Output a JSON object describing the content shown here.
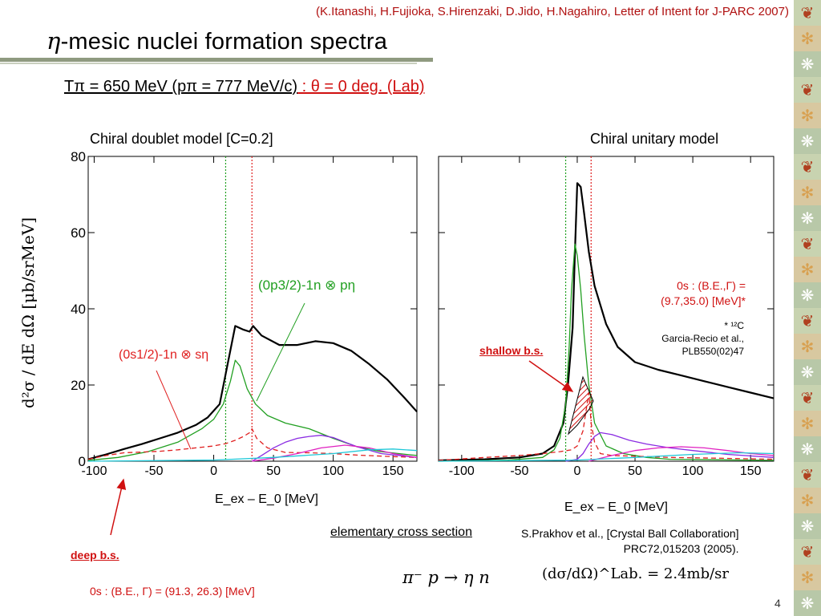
{
  "slide": {
    "reference": "(K.Itanashi, H.Fujioka, S.Hirenzaki, D.Jido, H.Nagahiro, Letter of Intent for J-PARC 2007)",
    "title_symbol": "η",
    "title_text": "-mesic nuclei formation spectra",
    "kinematics_main": "Tπ = 650 MeV  (pπ = 777 MeV/c)",
    "kinematics_angle": " : θ = 0 deg. (Lab)",
    "y_axis_label": "d²σ / dE dΩ [μb/srMeV]",
    "elementary_label": "elementary cross section",
    "elementary_ref_line1": "S.Prakhov et al., [Crystal Ball Collaboration]",
    "elementary_ref_line2": "PRC72,015203 (2005).",
    "reaction": "π⁻ p → η n",
    "formula": "(dσ/dΩ)^Lab. = 2.4mb/sr",
    "deep_bs_label": "deep b.s.",
    "deep_bs_info": "0s : (B.E., Γ) = (91.3, 26.3) [MeV]",
    "shallow_bs_label": "shallow b.s.",
    "right_info_line1": "0s : (B.E.,Γ) =",
    "right_info_line2": "(9.7,35.0) [MeV]*",
    "ref_line1": "* ¹²C",
    "ref_line2": "Garcia-Recio et al.,",
    "ref_line3": "PLB550(02)47",
    "page_number": "4",
    "colors": {
      "accent_red": "#d01010",
      "green": "#22a022",
      "black": "#000000",
      "purple": "#8a2be2",
      "magenta": "#e020c0",
      "cyan": "#20c8d8",
      "strip": "#cdd6b9"
    }
  },
  "chart_data": [
    {
      "type": "line",
      "title": "Chiral doublet model [C=0.2]",
      "xlabel": "E_ex – E_0 [MeV]",
      "ylabel": "d²σ/dEdΩ [μb/srMeV]",
      "xlim": [
        -105,
        170
      ],
      "ylim": [
        0,
        80
      ],
      "xticks": [
        -100,
        -50,
        0,
        50,
        100,
        150
      ],
      "yticks": [
        0,
        20,
        40,
        60,
        80
      ],
      "grid": false,
      "threshold_lines": [
        {
          "x": 10,
          "color": "green"
        },
        {
          "x": 32,
          "color": "red"
        }
      ],
      "annotations": [
        "(0p3/2)-1n ⊗ pη",
        "(0s1/2)-1n ⊗ sη"
      ],
      "series": [
        {
          "color": "black",
          "style": "solid",
          "x": [
            -105,
            -90,
            -75,
            -60,
            -45,
            -30,
            -15,
            -5,
            5,
            12,
            18,
            25,
            30,
            33,
            40,
            55,
            70,
            85,
            100,
            115,
            130,
            145,
            160,
            170
          ],
          "y": [
            0.5,
            1.8,
            3.2,
            4.5,
            6,
            7.5,
            9.5,
            11.5,
            15,
            26,
            35.5,
            34.5,
            34,
            35.5,
            33,
            30.5,
            30.5,
            31.5,
            31,
            29,
            25.5,
            21.5,
            16.5,
            13
          ]
        },
        {
          "color": "green",
          "style": "solid",
          "x": [
            -105,
            -80,
            -55,
            -30,
            -10,
            0,
            8,
            14,
            18,
            22,
            28,
            35,
            45,
            60,
            80,
            100,
            120,
            140,
            170
          ],
          "y": [
            0.2,
            1,
            2.5,
            5,
            8.5,
            11,
            15,
            21,
            26.5,
            25,
            19,
            15,
            12,
            10,
            8.5,
            6,
            3.8,
            2.5,
            1.5
          ]
        },
        {
          "color": "red",
          "style": "dashed",
          "x": [
            -105,
            -90,
            -75,
            -60,
            -45,
            -30,
            -15,
            0,
            10,
            18,
            25,
            30,
            32,
            36,
            45,
            60,
            80,
            100,
            120,
            150,
            170
          ],
          "y": [
            0.5,
            1.5,
            2.2,
            2.4,
            2.6,
            3,
            3.5,
            4,
            4.6,
            5.5,
            6.5,
            7.5,
            8.5,
            6,
            3.5,
            2.3,
            2.2,
            2,
            1.6,
            1.2,
            1
          ]
        },
        {
          "color": "purple",
          "style": "solid",
          "x": [
            32,
            40,
            50,
            60,
            70,
            80,
            90,
            100,
            110,
            120,
            140,
            170
          ],
          "y": [
            0,
            1.5,
            3.5,
            5,
            6,
            6.5,
            6.8,
            6.2,
            5,
            3.8,
            2,
            1
          ]
        },
        {
          "color": "magenta",
          "style": "solid",
          "x": [
            32,
            50,
            70,
            90,
            110,
            130,
            150,
            170
          ],
          "y": [
            0,
            0.8,
            2,
            3.5,
            4.2,
            3.5,
            2,
            1
          ]
        },
        {
          "color": "cyan",
          "style": "solid",
          "x": [
            -105,
            0,
            50,
            100,
            130,
            150,
            170
          ],
          "y": [
            0,
            0.3,
            1,
            2,
            3,
            3.2,
            2.8
          ]
        }
      ]
    },
    {
      "type": "line",
      "title": "Chiral unitary model",
      "xlabel": "E_ex – E_0 [MeV]",
      "ylabel": "",
      "xlim": [
        -120,
        170
      ],
      "ylim": [
        0,
        80
      ],
      "xticks": [
        -100,
        -50,
        0,
        50,
        100,
        150
      ],
      "yticks": [
        0,
        20,
        40,
        60,
        80
      ],
      "grid": false,
      "threshold_lines": [
        {
          "x": -10,
          "color": "green"
        },
        {
          "x": 12,
          "color": "red"
        }
      ],
      "series": [
        {
          "color": "black",
          "style": "solid",
          "x": [
            -120,
            -80,
            -50,
            -30,
            -20,
            -12,
            -8,
            -4,
            -2,
            0,
            3,
            6,
            10,
            15,
            25,
            35,
            50,
            70,
            90,
            110,
            130,
            150,
            170
          ],
          "y": [
            0.2,
            0.5,
            1,
            2,
            4,
            10,
            20,
            35,
            55,
            73,
            72,
            65,
            55,
            46,
            36,
            30,
            26,
            24,
            22.5,
            21,
            19.5,
            18,
            16.5
          ]
        },
        {
          "color": "green",
          "style": "solid",
          "x": [
            -120,
            -60,
            -30,
            -20,
            -15,
            -10,
            -7,
            -5,
            -2,
            0,
            3,
            6,
            10,
            15,
            25,
            40,
            60,
            80,
            170
          ],
          "y": [
            0,
            0.3,
            1,
            3,
            6,
            15,
            30,
            45,
            57,
            54,
            45,
            33,
            20,
            10,
            4,
            2,
            1,
            0.5,
            0.2
          ]
        },
        {
          "color": "red",
          "style": "dashed",
          "x": [
            -120,
            -80,
            -50,
            -30,
            -15,
            -5,
            0,
            5,
            8,
            10,
            12,
            15,
            20,
            30,
            50,
            80,
            120,
            170
          ],
          "y": [
            0.2,
            1,
            1.5,
            2,
            2.5,
            3,
            4,
            8,
            14,
            18,
            10,
            5,
            2,
            1.5,
            1.3,
            1,
            0.8,
            0.5
          ]
        },
        {
          "color": "purple",
          "style": "solid",
          "x": [
            -10,
            0,
            5,
            10,
            15,
            20,
            30,
            45,
            60,
            80,
            100,
            130,
            170
          ],
          "y": [
            0,
            0.5,
            2,
            4.5,
            6.5,
            7.5,
            7,
            5.5,
            4.5,
            3.5,
            2.8,
            1.8,
            1
          ]
        },
        {
          "color": "magenta",
          "style": "solid",
          "x": [
            10,
            30,
            50,
            70,
            90,
            110,
            130,
            150,
            170
          ],
          "y": [
            0,
            1.5,
            2.8,
            3.5,
            3.8,
            3.5,
            2.8,
            2,
            1.5
          ]
        },
        {
          "color": "cyan",
          "style": "solid",
          "x": [
            -120,
            0,
            50,
            100,
            140,
            170
          ],
          "y": [
            0,
            0.3,
            1,
            1.8,
            2.2,
            2
          ]
        }
      ]
    }
  ]
}
